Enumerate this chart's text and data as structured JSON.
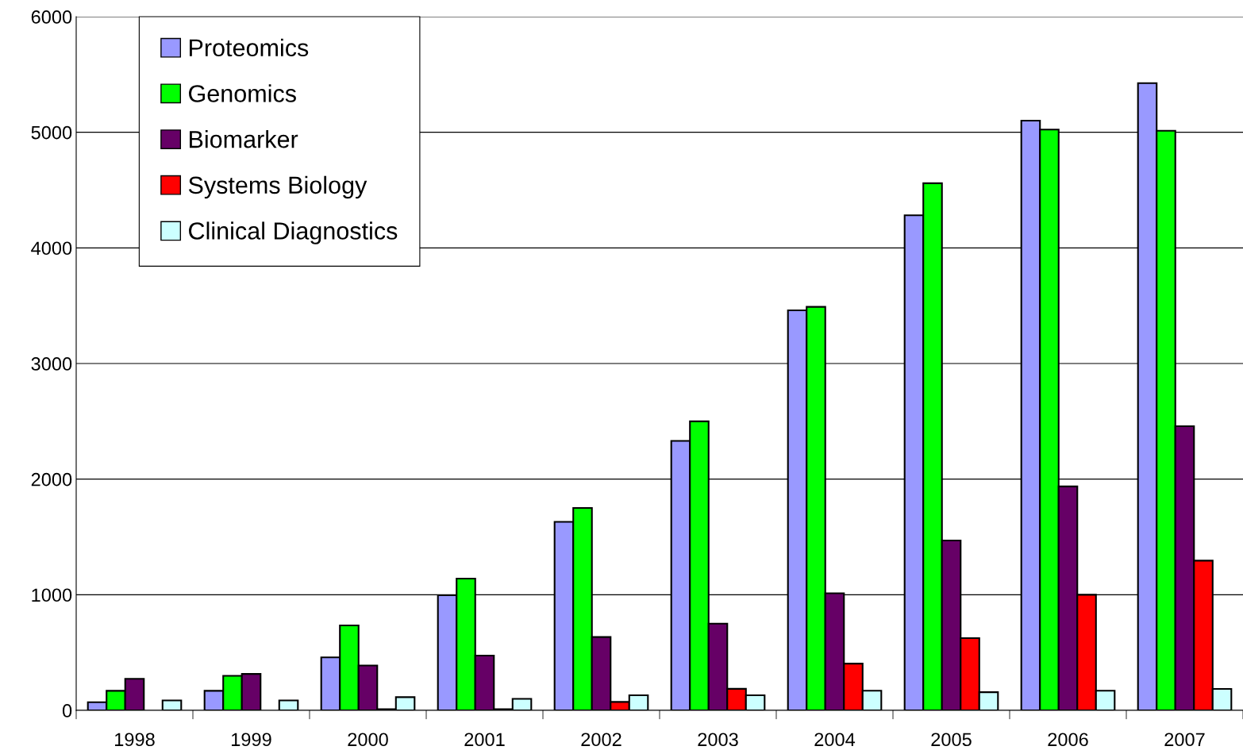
{
  "chart_data": {
    "type": "bar",
    "categories": [
      "1998",
      "1999",
      "2000",
      "2001",
      "2002",
      "2003",
      "2004",
      "2005",
      "2006",
      "2007"
    ],
    "series": [
      {
        "name": "Proteomics",
        "color": "#9999ff",
        "values": [
          70,
          169,
          458,
          995,
          1631,
          2331,
          3460,
          4282,
          5101,
          5425
        ]
      },
      {
        "name": "Genomics",
        "color": "#00ff00",
        "values": [
          169,
          299,
          735,
          1140,
          1750,
          2500,
          3490,
          4559,
          5024,
          5013
        ]
      },
      {
        "name": "Biomarker",
        "color": "#660066",
        "values": [
          273,
          315,
          388,
          474,
          634,
          750,
          1013,
          1469,
          1937,
          2458
        ]
      },
      {
        "name": "Systems Biology",
        "color": "#ff0000",
        "values": [
          null,
          null,
          10,
          10,
          73,
          186,
          404,
          625,
          1000,
          1295
        ]
      },
      {
        "name": "Clinical Diagnostics",
        "color": "#ccffff",
        "values": [
          86,
          86,
          114,
          99,
          130,
          130,
          170,
          157,
          170,
          185
        ]
      }
    ],
    "ylim": [
      0,
      6000
    ],
    "yticks": [
      0,
      1000,
      2000,
      3000,
      4000,
      5000,
      6000
    ],
    "grid": "y",
    "legend": "top left"
  }
}
